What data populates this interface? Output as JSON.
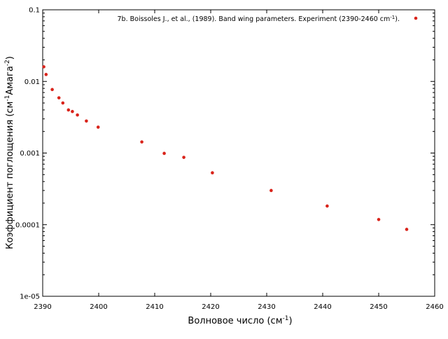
{
  "chart_data": {
    "type": "scatter",
    "title": "",
    "xlabel": "Волновое число (см",
    "xlabel_sup": "-1",
    "xlabel_end": ")",
    "ylabel": "Коэффициент поглощения (см",
    "ylabel_sup1": "-1",
    "ylabel_mid": "Амага",
    "ylabel_sup2": "-2",
    "ylabel_end": ")",
    "xlim": [
      2390,
      2460
    ],
    "ylim": [
      1e-05,
      0.1
    ],
    "yscale": "log",
    "grid": false,
    "legend_position": "top-right",
    "x_ticks": [
      2390,
      2400,
      2410,
      2420,
      2430,
      2440,
      2450,
      2460
    ],
    "x_tick_labels": [
      "2390",
      "2400",
      "2410",
      "2420",
      "2430",
      "2440",
      "2450",
      "2460"
    ],
    "y_ticks": [
      1e-05,
      0.0001,
      0.001,
      0.01,
      0.1
    ],
    "y_tick_labels": [
      "1e-05",
      "0.0001",
      "0.001",
      "0.01",
      "0.1"
    ],
    "series": [
      {
        "name": "7b. Boissoles J., et al., (1989). Band wing parameters. Experiment (2390-2460 cm",
        "name_sup": "-1",
        "name_end": ").",
        "color": "#d9241b",
        "x": [
          2390.2,
          2390.6,
          2391.7,
          2392.9,
          2393.6,
          2394.6,
          2395.3,
          2396.2,
          2397.8,
          2399.9,
          2407.7,
          2411.7,
          2415.2,
          2420.3,
          2430.8,
          2440.8,
          2450.0,
          2455.0
        ],
        "y": [
          0.016,
          0.0125,
          0.0077,
          0.0059,
          0.005,
          0.004,
          0.0038,
          0.0034,
          0.0028,
          0.0023,
          0.00143,
          0.00099,
          0.00087,
          0.00053,
          0.0003,
          0.000182,
          0.000118,
          8.6e-05
        ]
      }
    ]
  }
}
